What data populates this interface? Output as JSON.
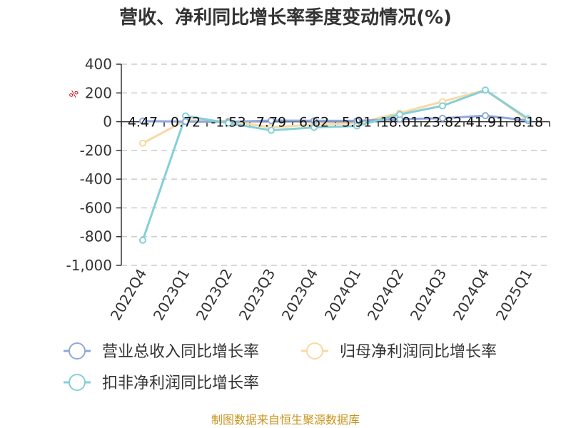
{
  "chart_data": {
    "type": "line",
    "title": "营收、净利同比增长率季度变动情况(%)",
    "ylabel": "%",
    "categories": [
      "2022Q4",
      "2023Q1",
      "2023Q2",
      "2023Q3",
      "2023Q4",
      "2024Q1",
      "2024Q2",
      "2024Q3",
      "2024Q4",
      "2025Q1"
    ],
    "ylim": [
      -1000,
      400
    ],
    "yticks": [
      400,
      200,
      0,
      -200,
      -400,
      -600,
      -800,
      -1000
    ],
    "ytick_labels": [
      "400",
      "200",
      "0",
      "-200",
      "-400",
      "-600",
      "-800",
      "-1,000"
    ],
    "grid": true,
    "legend_position": "bottom",
    "series": [
      {
        "name": "营业总收入同比增长率",
        "color": "#8fa8dc",
        "values": [
          4.47,
          0.72,
          -1.53,
          7.79,
          6.62,
          5.91,
          18.01,
          23.82,
          41.91,
          8.18
        ],
        "data_labels": [
          "4.47",
          "0.72",
          "-1.53",
          "7.79",
          "6.62",
          "5.91",
          "18.01",
          "23.82",
          "41.91",
          "8.18"
        ]
      },
      {
        "name": "归母净利润同比增长率",
        "color": "#f9d9a3",
        "values": [
          -150,
          10,
          5,
          -40,
          -20,
          -10,
          60,
          140,
          220,
          10
        ],
        "data_labels": []
      },
      {
        "name": "扣非净利润同比增长率",
        "color": "#85cfd8",
        "values": [
          -825,
          40,
          -10,
          -60,
          -40,
          -30,
          50,
          110,
          220,
          20
        ],
        "data_labels": []
      }
    ],
    "source": "制图数据来自恒生聚源数据库"
  }
}
